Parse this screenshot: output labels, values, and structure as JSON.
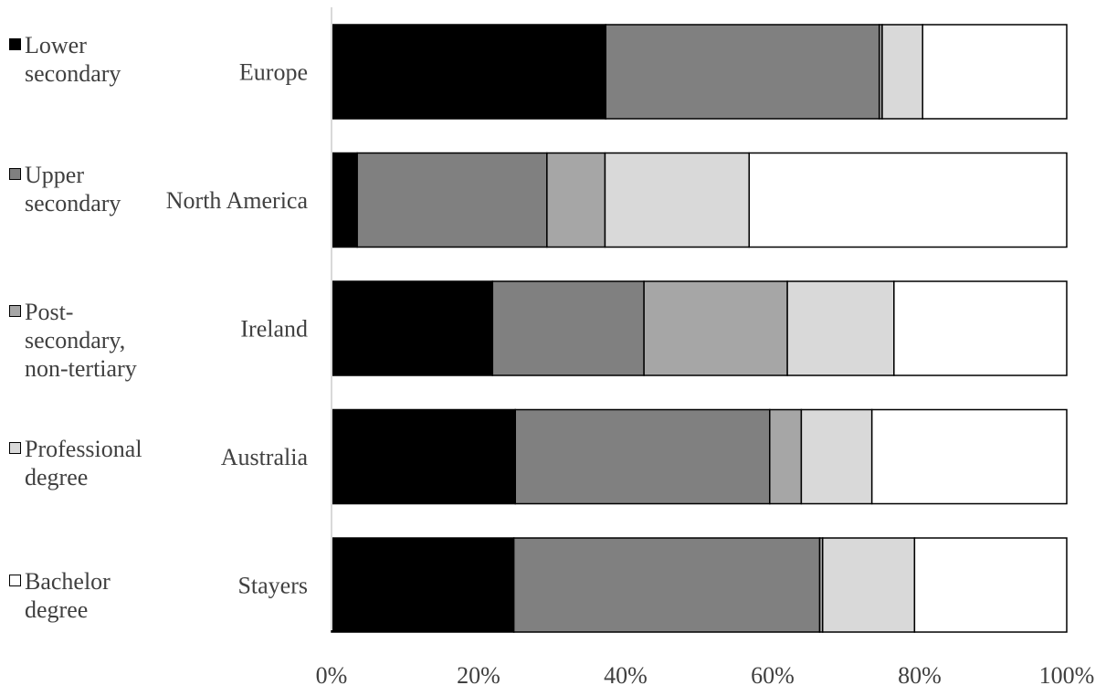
{
  "chart_data": {
    "type": "bar",
    "orientation": "horizontal",
    "stacked": "percent",
    "title": "",
    "xlabel": "",
    "ylabel": "",
    "xlim": [
      0,
      100
    ],
    "x_ticks": [
      "0%",
      "20%",
      "40%",
      "60%",
      "80%",
      "100%"
    ],
    "categories": [
      "Europe",
      "North America",
      "Ireland",
      "Australia",
      "Stayers"
    ],
    "series": [
      {
        "name": "Lower secondary",
        "legend_label": "Lower\nsecondary",
        "color": "#000000",
        "values": [
          37.3,
          3.5,
          21.9,
          25.0,
          24.8
        ]
      },
      {
        "name": "Upper secondary",
        "legend_label": "Upper\nsecondary",
        "color": "#808080",
        "values": [
          37.2,
          25.8,
          20.6,
          34.6,
          41.6
        ]
      },
      {
        "name": "Post-secondary, non-tertiary",
        "legend_label": "Post-\nsecondary,\nnon-tertiary",
        "color": "#a6a6a6",
        "values": [
          0.4,
          7.9,
          19.5,
          4.3,
          0.4
        ]
      },
      {
        "name": "Professional degree",
        "legend_label": "Professional\ndegree",
        "color": "#d9d9d9",
        "values": [
          5.5,
          19.6,
          14.5,
          9.6,
          12.5
        ]
      },
      {
        "name": "Bachelor degree",
        "legend_label": "Bachelor\ndegree",
        "color": "#ffffff",
        "values": [
          19.6,
          43.2,
          23.5,
          26.5,
          20.7
        ]
      }
    ],
    "legend_position": "left",
    "grid": false
  }
}
